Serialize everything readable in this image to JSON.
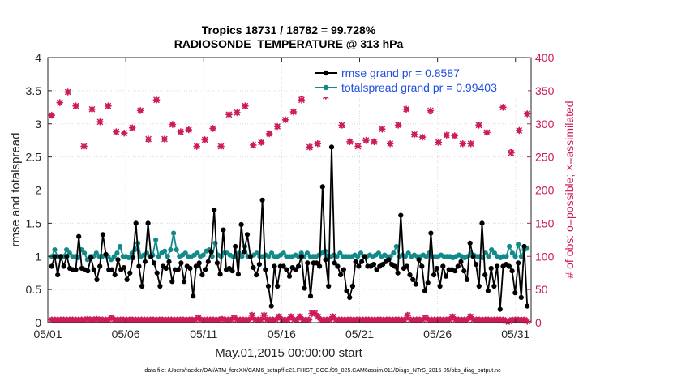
{
  "chart_data": {
    "type": "line",
    "title": "Tropics 18731 / 18782 = 99.728%",
    "subtitle": "RADIOSONDE_TEMPERATURE @ 313 hPa",
    "xlabel": "May.01,2015 00:00:00 start",
    "ylabel": "rmse and totalspread",
    "y2label": "# of obs: o=possible; ×=assimilated",
    "footnote": "data file: /Users/raeder/DAI/ATM_forcXX/CAM6_setup/f.e21.FHIST_BGC.f09_025.CAM6assim.011/Diags_NTrS_2015-05/obs_diag_output.nc",
    "xlim": [
      1,
      32
    ],
    "xticks": [
      1,
      6,
      11,
      16,
      21,
      26,
      31
    ],
    "xtick_labels": [
      "05/01",
      "05/06",
      "05/11",
      "05/16",
      "05/21",
      "05/26",
      "05/31"
    ],
    "ylim": [
      0,
      4
    ],
    "yticks": [
      0,
      0.5,
      1,
      1.5,
      2,
      2.5,
      3,
      3.5,
      4
    ],
    "ytick_labels": [
      "0",
      "0.5",
      "1",
      "1.5",
      "2",
      "2.5",
      "3",
      "3.5",
      "4"
    ],
    "y2lim": [
      0,
      400
    ],
    "y2ticks": [
      0,
      50,
      100,
      150,
      200,
      250,
      300,
      350,
      400
    ],
    "y2tick_labels": [
      "0",
      "50",
      "100",
      "150",
      "200",
      "250",
      "300",
      "350",
      "400"
    ],
    "legend_position": "top-right",
    "colors": {
      "rmse": "#000000",
      "spread": "#128a8a",
      "obs": "#cc1a5a"
    },
    "series": [
      {
        "name": "rmse grand pr = 0.8587",
        "axis": "left",
        "values": [
          0.85,
          1.0,
          0.72,
          1.0,
          0.85,
          1.0,
          0.82,
          0.8,
          0.8,
          1.3,
          0.82,
          0.8,
          0.78,
          0.98,
          0.8,
          0.65,
          0.85,
          1.33,
          1.03,
          0.8,
          0.8,
          0.72,
          0.95,
          0.8,
          0.83,
          0.65,
          0.75,
          0.98,
          1.5,
          0.85,
          0.55,
          0.92,
          1.5,
          1.0,
          0.9,
          0.75,
          0.55,
          0.85,
          0.82,
          0.92,
          0.62,
          0.8,
          0.8,
          0.9,
          0.62,
          0.85,
          0.82,
          0.4,
          0.85,
          0.9,
          0.72,
          0.8,
          0.92,
          1.07,
          1.7,
          0.9,
          0.73,
          1.4,
          0.8,
          0.82,
          0.78,
          1.15,
          0.73,
          1.48,
          1.07,
          1.33,
          1.0,
          0.83,
          0.72,
          0.88,
          1.85,
          0.8,
          0.55,
          0.25,
          0.85,
          0.55,
          0.85,
          0.85,
          0.8,
          0.7,
          0.83,
          0.8,
          0.85,
          1.0,
          0.52,
          0.9,
          0.4,
          0.9,
          0.9,
          0.85,
          2.05,
          0.95,
          0.55,
          2.65,
          0.9,
          0.85,
          0.72,
          0.8,
          0.48,
          0.38,
          0.55,
          0.92,
          0.85,
          0.92,
          1.0,
          0.85,
          0.85,
          0.88,
          0.8,
          0.85,
          0.88,
          0.92,
          0.95,
          0.88,
          0.85,
          0.75,
          1.62,
          0.82,
          0.85,
          0.72,
          0.65,
          0.58,
          0.95,
          0.85,
          0.48,
          0.6,
          1.35,
          0.72,
          0.82,
          0.55,
          0.85,
          0.7,
          0.8,
          0.8,
          0.78,
          0.85,
          0.92,
          0.78,
          0.65,
          1.2,
          1.0,
          0.88,
          0.55,
          1.5,
          0.72,
          0.48,
          0.82,
          0.55,
          0.85,
          0.2,
          0.85,
          0.88,
          0.85,
          0.78,
          0.45,
          0.9,
          0.38,
          1.15,
          0.25
        ]
      },
      {
        "name": "totalspread grand pr = 0.99403",
        "axis": "left",
        "values": [
          1.0,
          1.1,
          1.0,
          1.0,
          1.0,
          1.1,
          1.05,
          1.0,
          1.0,
          0.98,
          1.1,
          1.05,
          0.95,
          1.0,
          1.0,
          1.05,
          1.0,
          1.0,
          1.02,
          1.0,
          0.95,
          1.0,
          1.05,
          1.15,
          1.0,
          1.0,
          0.98,
          1.05,
          1.1,
          1.2,
          1.0,
          1.02,
          1.05,
          1.0,
          1.02,
          1.25,
          1.0,
          1.05,
          1.08,
          1.0,
          1.1,
          1.35,
          1.1,
          1.0,
          1.02,
          1.05,
          1.0,
          1.0,
          1.02,
          1.05,
          1.0,
          1.02,
          1.08,
          1.1,
          1.0,
          1.2,
          1.02,
          1.0,
          1.05,
          1.05,
          1.02,
          1.0,
          1.0,
          1.05,
          1.0,
          1.15,
          1.0,
          1.0,
          1.02,
          1.05,
          1.0,
          1.0,
          1.02,
          1.0,
          1.05,
          1.0,
          1.0,
          1.02,
          1.05,
          1.0,
          1.0,
          1.0,
          1.02,
          1.0,
          1.05,
          1.0,
          1.05,
          1.0,
          1.0,
          1.0,
          1.02,
          1.05,
          1.08,
          1.0,
          1.0,
          1.02,
          1.0,
          1.05,
          1.0,
          1.0,
          1.0,
          1.0,
          1.02,
          1.0,
          1.05,
          1.0,
          1.0,
          1.02,
          1.0,
          1.02,
          1.05,
          1.0,
          1.02,
          1.0,
          1.0,
          1.05,
          1.15,
          1.0,
          1.02,
          1.0,
          1.05,
          1.0,
          1.02,
          1.0,
          1.0,
          1.02,
          1.0,
          1.05,
          1.0,
          1.0,
          1.0,
          1.02,
          1.0,
          1.0,
          1.0,
          0.98,
          1.0,
          1.02,
          1.0,
          0.98,
          1.0,
          1.05,
          1.02,
          1.0,
          1.0,
          0.98,
          1.05,
          1.0,
          1.1,
          1.05,
          1.0,
          0.98,
          1.0,
          1.0,
          1.15,
          1.05,
          1.0,
          1.18,
          1.0,
          1.1,
          1.12
        ]
      }
    ],
    "obs_possible": [
      313,
      332,
      348,
      327,
      266,
      322,
      303,
      327,
      288,
      286,
      294,
      320,
      276,
      336,
      277,
      299,
      288,
      291,
      266,
      276,
      293,
      266,
      314,
      317,
      327,
      268,
      272,
      285,
      296,
      306,
      318,
      338,
      265,
      270,
      342,
      348,
      297,
      273,
      267,
      274,
      273,
      292,
      270,
      298,
      322,
      284,
      280,
      318,
      272,
      283,
      282,
      270,
      270,
      298,
      287,
      345,
      325,
      258,
      290,
      315
    ],
    "obs_assimilated": [
      313,
      332,
      348,
      327,
      266,
      322,
      303,
      327,
      288,
      286,
      294,
      320,
      277,
      336,
      277,
      299,
      288,
      291,
      266,
      276,
      293,
      266,
      314,
      317,
      327,
      268,
      272,
      285,
      296,
      306,
      318,
      336,
      265,
      270,
      342,
      346,
      298,
      273,
      266,
      275,
      273,
      292,
      270,
      298,
      322,
      284,
      280,
      320,
      272,
      283,
      282,
      270,
      270,
      298,
      287,
      345,
      325,
      256,
      290,
      315
    ],
    "obs_count_low_possible": [
      5,
      5,
      5,
      5,
      5,
      5,
      5,
      5,
      5,
      5,
      5,
      5,
      6,
      5,
      5,
      6,
      5,
      5,
      5,
      5,
      8,
      5,
      5,
      5,
      5,
      5,
      5,
      5,
      5,
      5,
      5,
      5,
      5,
      5,
      5,
      5,
      5,
      5,
      5,
      5,
      5,
      5,
      5,
      5,
      5,
      5,
      5,
      5,
      5,
      8,
      5,
      5,
      5,
      5,
      5,
      5,
      5,
      6,
      5,
      5,
      5,
      8,
      5,
      5,
      5,
      5,
      5,
      12,
      5,
      5,
      5,
      12,
      5,
      5,
      5,
      5,
      10,
      5,
      5,
      5,
      10,
      5,
      5,
      10,
      5,
      5,
      5,
      15,
      15,
      10,
      5,
      5,
      5,
      5,
      10,
      5,
      5,
      5,
      5,
      5,
      5,
      5,
      5,
      5,
      5,
      5,
      5,
      5,
      5,
      5,
      5,
      5,
      5,
      5,
      5,
      5,
      5,
      5,
      5,
      12,
      5,
      5,
      5,
      5,
      5,
      8,
      5,
      5,
      5,
      5,
      5,
      5,
      5,
      5,
      10,
      5,
      5,
      5,
      5,
      5,
      10,
      5,
      5,
      5,
      5,
      5,
      5,
      5,
      5,
      5,
      5,
      5,
      3,
      3,
      5,
      5,
      5,
      5,
      5,
      3
    ],
    "obs_count_low_assimilated": [
      4,
      4,
      4,
      4,
      4,
      4,
      4,
      4,
      4,
      4,
      4,
      4,
      5,
      4,
      4,
      5,
      4,
      4,
      4,
      4,
      7,
      4,
      4,
      4,
      4,
      4,
      4,
      4,
      4,
      4,
      4,
      4,
      4,
      4,
      4,
      4,
      4,
      4,
      4,
      4,
      4,
      4,
      4,
      4,
      4,
      4,
      4,
      4,
      4,
      7,
      4,
      4,
      4,
      4,
      4,
      4,
      4,
      5,
      4,
      4,
      4,
      7,
      4,
      4,
      4,
      4,
      4,
      11,
      4,
      4,
      4,
      11,
      4,
      4,
      4,
      4,
      9,
      4,
      4,
      4,
      9,
      4,
      4,
      9,
      4,
      4,
      4,
      14,
      14,
      9,
      4,
      4,
      4,
      4,
      9,
      4,
      4,
      4,
      4,
      4,
      4,
      4,
      4,
      4,
      4,
      4,
      4,
      4,
      4,
      4,
      4,
      4,
      4,
      4,
      4,
      4,
      4,
      4,
      4,
      11,
      4,
      4,
      4,
      4,
      4,
      7,
      4,
      4,
      4,
      4,
      4,
      4,
      4,
      4,
      9,
      4,
      4,
      4,
      4,
      4,
      9,
      4,
      4,
      4,
      4,
      4,
      4,
      4,
      4,
      4,
      4,
      4,
      2,
      2,
      4,
      4,
      4,
      4,
      4,
      2
    ]
  }
}
